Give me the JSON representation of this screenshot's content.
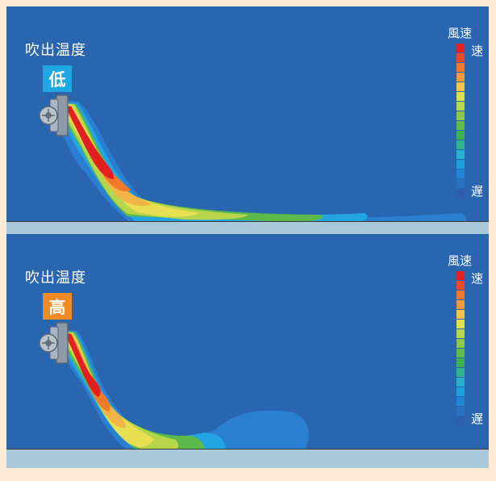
{
  "panels": [
    {
      "title": "吹出温度",
      "badge": "低",
      "badge_color": "#1ea7e1",
      "legend_title": "風速",
      "legend_fast": "速",
      "legend_slow": "遅"
    },
    {
      "title": "吹出温度",
      "badge": "高",
      "badge_color": "#ef8a24",
      "legend_title": "風速",
      "legend_fast": "速",
      "legend_slow": "遅"
    }
  ],
  "legend_colors": [
    "#e32020",
    "#ee4a1f",
    "#f07a2a",
    "#f39b3c",
    "#f5c24a",
    "#dfe04a",
    "#b7d64a",
    "#8cc94a",
    "#62bb4a",
    "#3cb34f",
    "#2fb58d",
    "#24b2cf",
    "#1e9fe0",
    "#1f86d6",
    "#2a73c2",
    "#2d5fad"
  ]
}
